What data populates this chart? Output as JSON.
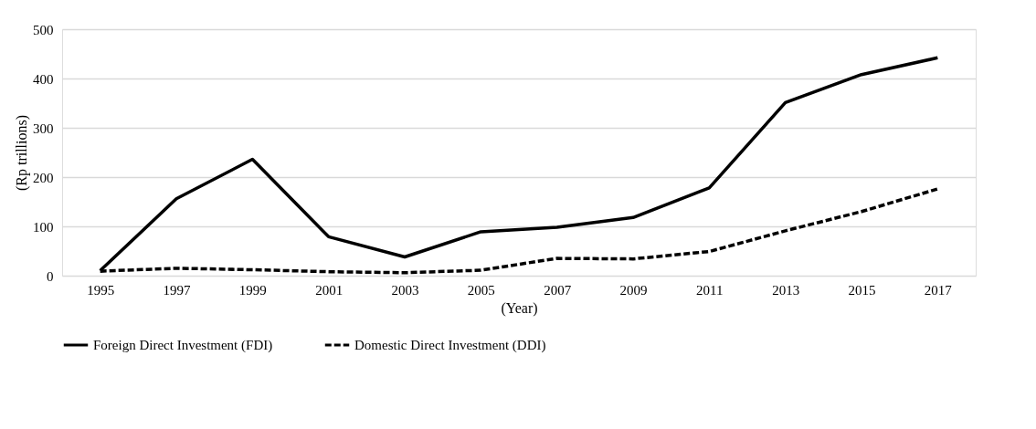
{
  "chart_data": {
    "type": "line",
    "xlabel": "(Year)",
    "ylabel": "(Rp trillions)",
    "categories": [
      "1995",
      "1997",
      "1999",
      "2001",
      "2003",
      "2005",
      "2007",
      "2009",
      "2011",
      "2013",
      "2015",
      "2017"
    ],
    "series": [
      {
        "name": "Foreign Direct Investment (FDI)",
        "color": "#000000",
        "line_style": "solid",
        "values": [
          10,
          156,
          236,
          79,
          38,
          89,
          98,
          118,
          178,
          351,
          408,
          442
        ]
      },
      {
        "name": "Domestic Direct Investment (DDI)",
        "color": "#000000",
        "line_style": "dashed",
        "values": [
          9,
          15,
          12,
          8,
          6,
          11,
          35,
          34,
          49,
          91,
          130,
          176
        ]
      }
    ],
    "ylim": [
      0,
      500
    ],
    "yticks": [
      0,
      100,
      200,
      300,
      400,
      500
    ],
    "grid": "y",
    "legend": "bottom",
    "marker": "none"
  }
}
